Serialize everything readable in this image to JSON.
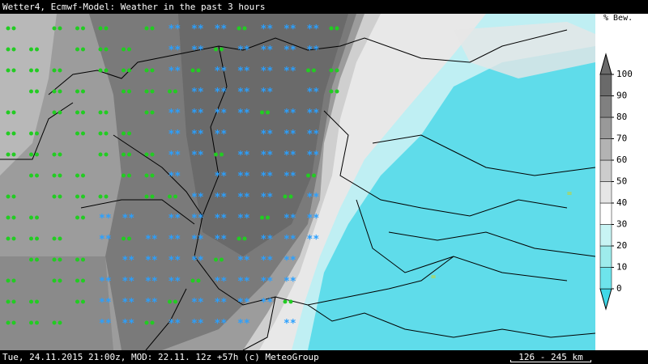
{
  "header": {
    "title": "Wetter4, Ecmwf-Model: Weather in the past 3 hours"
  },
  "legend": {
    "unit": "% Bew.",
    "ticks": [
      0,
      10,
      20,
      30,
      40,
      50,
      60,
      70,
      80,
      90,
      100
    ],
    "colors": [
      "#40d8e8",
      "#6ee4ec",
      "#9eecec",
      "#c8f4f4",
      "#ffffff",
      "#e6e6e6",
      "#cccccc",
      "#b3b3b3",
      "#999999",
      "#808080",
      "#6a6a6a"
    ]
  },
  "footer": {
    "text": "Tue, 24.11.2015 21:00z, MOD: 22.11. 12z +57h (c) MeteoGroup",
    "scale": "126 - 245 km"
  }
}
